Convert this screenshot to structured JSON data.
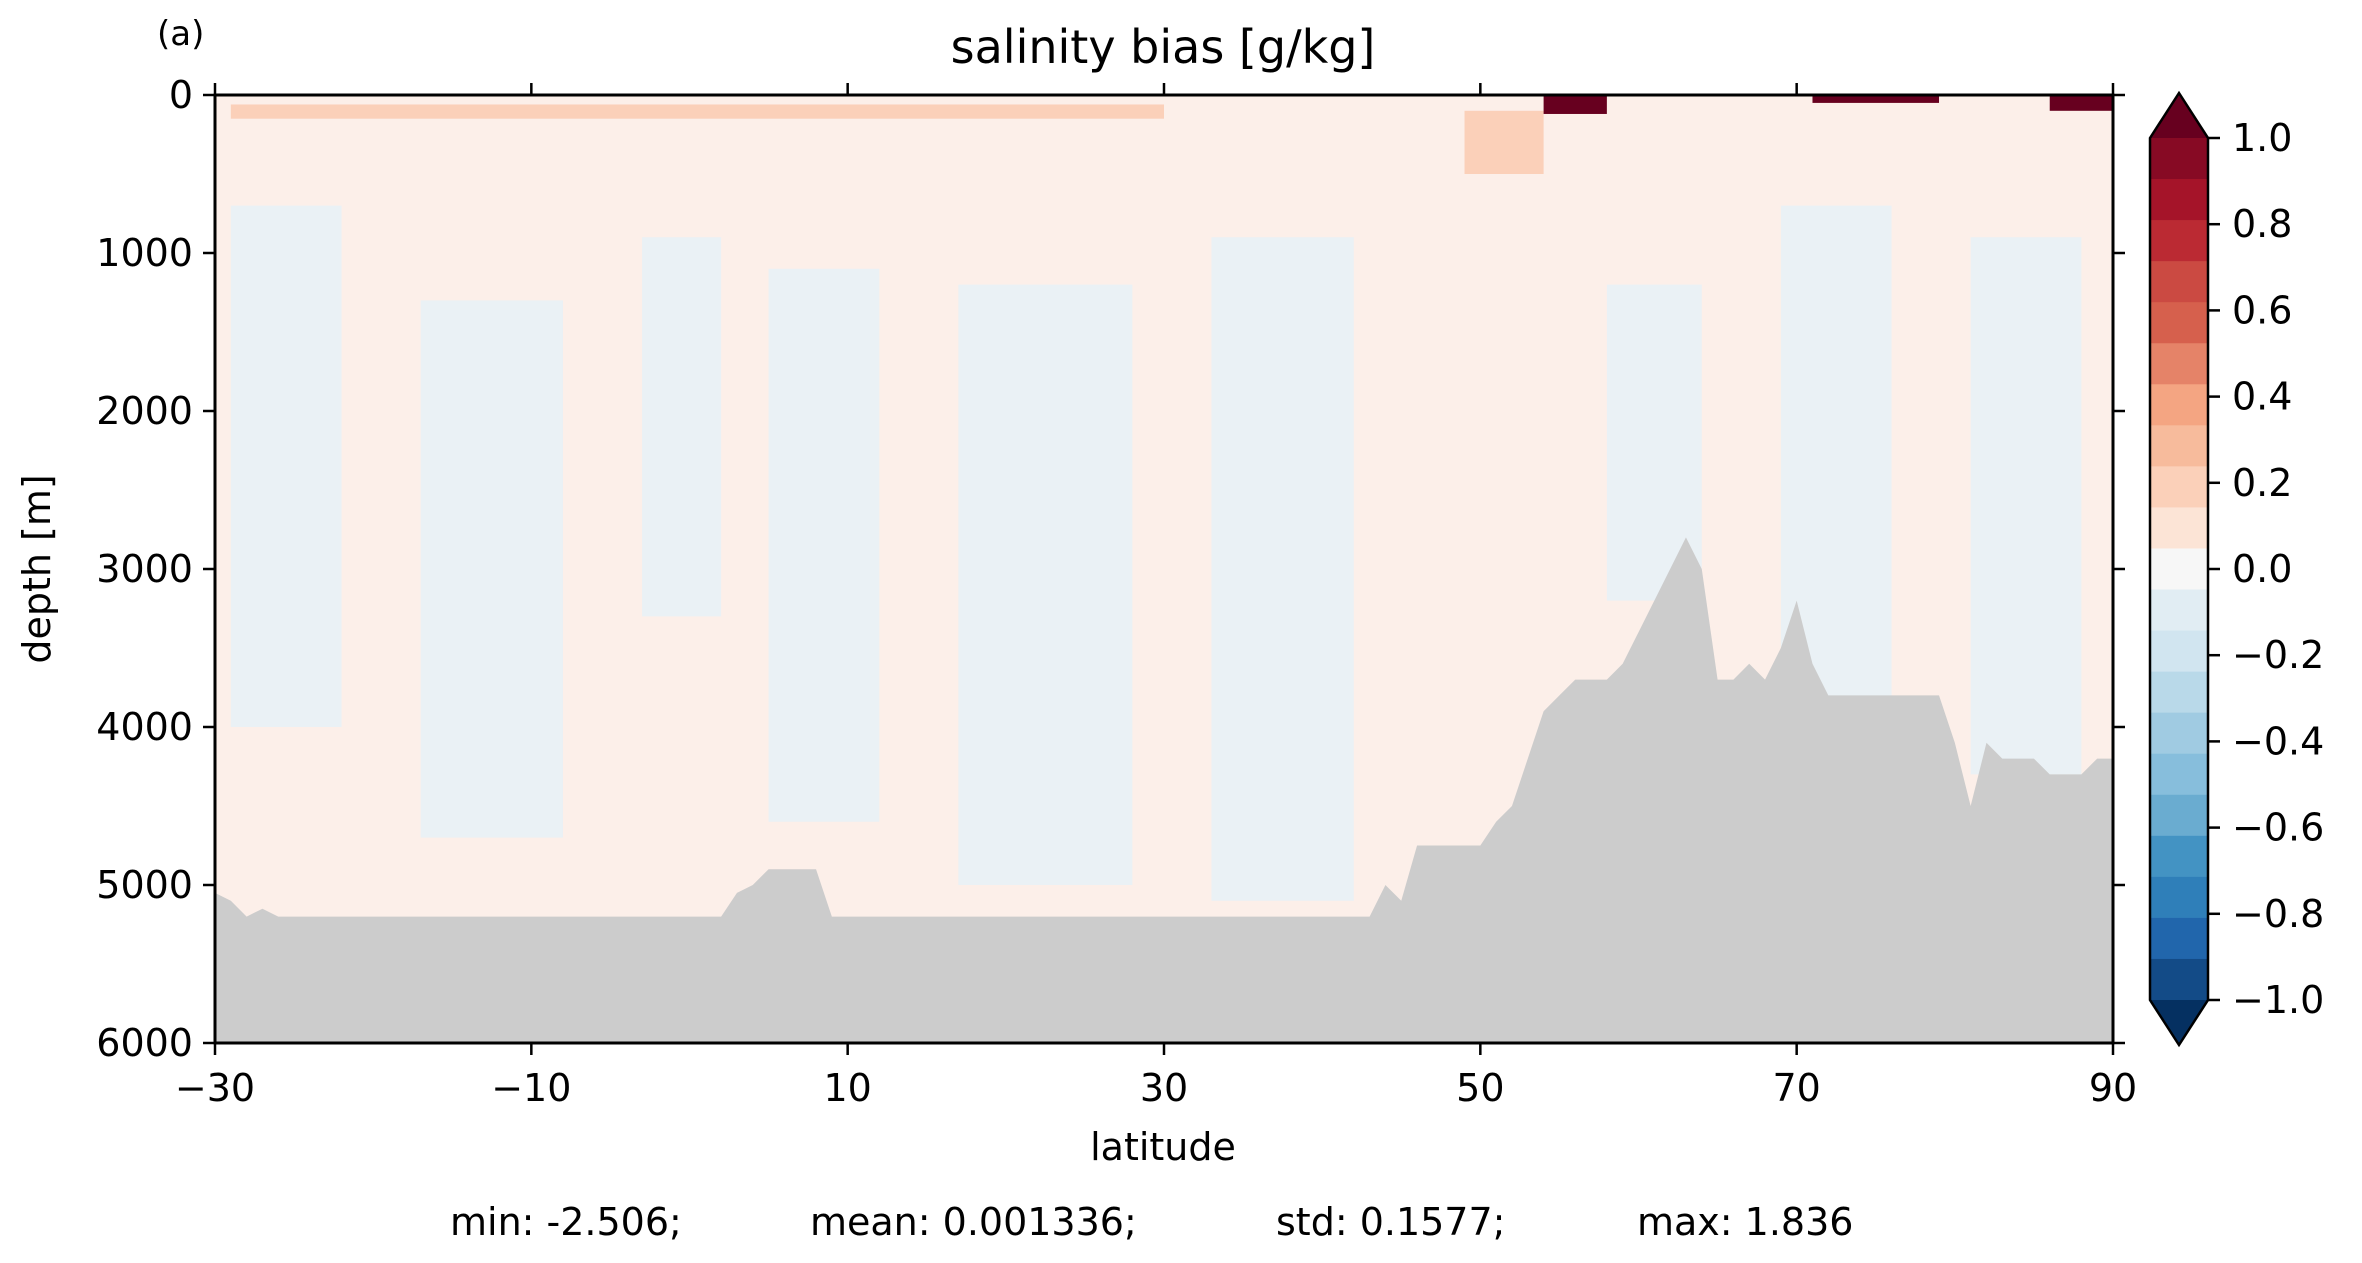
{
  "panel_label": "(a)",
  "chart_data": {
    "type": "heatmap",
    "title": "salinity bias [g/kg]",
    "xlabel": "latitude",
    "ylabel": "depth [m]",
    "xlim": [
      -30,
      90
    ],
    "ylim": [
      6000,
      0
    ],
    "y_inverted": true,
    "xticks": [
      -30,
      -10,
      10,
      30,
      50,
      70,
      90
    ],
    "xtick_labels": [
      "−30",
      "−10",
      "10",
      "30",
      "50",
      "70",
      "90"
    ],
    "yticks": [
      0,
      1000,
      2000,
      3000,
      4000,
      5000,
      6000
    ],
    "ytick_labels": [
      "0",
      "1000",
      "2000",
      "3000",
      "4000",
      "5000",
      "6000"
    ],
    "grid": false,
    "colormap": "RdBu_r",
    "colorbar": {
      "min": -1.0,
      "max": 1.0,
      "levels": 20,
      "extend": "both",
      "ticks": [
        1.0,
        0.8,
        0.6,
        0.4,
        0.2,
        0.0,
        -0.2,
        -0.4,
        -0.6,
        -0.8,
        -1.0
      ],
      "tick_labels": [
        "1.0",
        "0.8",
        "0.6",
        "0.4",
        "0.2",
        "0.0",
        "−0.2",
        "−0.4",
        "−0.6",
        "−0.8",
        "−1.0"
      ],
      "colors_top_to_bottom": [
        "#67001f",
        "#870a24",
        "#a51429",
        "#bb2a33",
        "#cb4a42",
        "#d6604d",
        "#e58368",
        "#f4a582",
        "#f7bb9c",
        "#fbd0b9",
        "#fce4d6",
        "#f7f7f7",
        "#e1edf3",
        "#d1e5f0",
        "#b9d9e9",
        "#a0cbe2",
        "#87bedc",
        "#6aacd0",
        "#4393c3",
        "#2f7fb9",
        "#2166ac",
        "#134b87",
        "#053061"
      ],
      "neutral_colors": {
        "positive": "#fcefe9",
        "negative": "#eaf1f5"
      }
    },
    "bias_patches": [
      {
        "lat": [
          -29,
          90
        ],
        "depth": [
          0,
          6000
        ],
        "value": 0.05
      },
      {
        "lat": [
          -29,
          -22
        ],
        "depth": [
          700,
          4000
        ],
        "value": -0.05
      },
      {
        "lat": [
          -17,
          -8
        ],
        "depth": [
          1300,
          4700
        ],
        "value": -0.05
      },
      {
        "lat": [
          -3,
          2
        ],
        "depth": [
          900,
          3300
        ],
        "value": -0.05
      },
      {
        "lat": [
          5,
          12
        ],
        "depth": [
          1100,
          4600
        ],
        "value": -0.05
      },
      {
        "lat": [
          17,
          28
        ],
        "depth": [
          1200,
          5000
        ],
        "value": -0.05
      },
      {
        "lat": [
          33,
          42
        ],
        "depth": [
          900,
          5100
        ],
        "value": -0.05
      },
      {
        "lat": [
          58,
          64
        ],
        "depth": [
          1200,
          3200
        ],
        "value": -0.05
      },
      {
        "lat": [
          69,
          76
        ],
        "depth": [
          700,
          4000
        ],
        "value": -0.05
      },
      {
        "lat": [
          81,
          88
        ],
        "depth": [
          900,
          4300
        ],
        "value": -0.05
      },
      {
        "lat": [
          -29,
          30
        ],
        "depth": [
          60,
          150
        ],
        "value": 0.15
      },
      {
        "lat": [
          49,
          54
        ],
        "depth": [
          100,
          500
        ],
        "value": 0.2
      },
      {
        "lat": [
          54,
          58
        ],
        "depth": [
          0,
          120
        ],
        "value": 1.0
      },
      {
        "lat": [
          71,
          79
        ],
        "depth": [
          0,
          50
        ],
        "value": 1.0
      },
      {
        "lat": [
          86,
          90
        ],
        "depth": [
          0,
          100
        ],
        "value": 1.0
      }
    ],
    "bathymetry": {
      "lat": [
        -30,
        -29,
        -28,
        -27,
        -26,
        2,
        3,
        4,
        5,
        6,
        7,
        8,
        9,
        43,
        44,
        45,
        46,
        47,
        48,
        49,
        50,
        51,
        52,
        53,
        54,
        55,
        56,
        57,
        58,
        59,
        60,
        61,
        62,
        63,
        64,
        65,
        66,
        67,
        68,
        69,
        70,
        71,
        72,
        73,
        74,
        75,
        76,
        77,
        78,
        79,
        80,
        81,
        82,
        83,
        84,
        85,
        86,
        87,
        88,
        89,
        90
      ],
      "depth": [
        5050,
        5100,
        5200,
        5150,
        5200,
        5200,
        5050,
        5000,
        4900,
        4900,
        4900,
        4900,
        5200,
        5200,
        5000,
        5100,
        4750,
        4750,
        4750,
        4750,
        4750,
        4600,
        4500,
        4200,
        3900,
        3800,
        3700,
        3700,
        3700,
        3600,
        3400,
        3200,
        3000,
        2800,
        3000,
        3700,
        3700,
        3600,
        3700,
        3500,
        3200,
        3600,
        3800,
        3800,
        3800,
        3800,
        3800,
        3800,
        3800,
        3800,
        4100,
        4500,
        4100,
        4200,
        4200,
        4200,
        4300,
        4300,
        4300,
        4200,
        4200
      ],
      "color": "#cccccc"
    }
  },
  "stats": {
    "min": "min: -2.506;",
    "mean": "mean: 0.001336;",
    "std": "std: 0.1577;",
    "max": "max: 1.836"
  }
}
